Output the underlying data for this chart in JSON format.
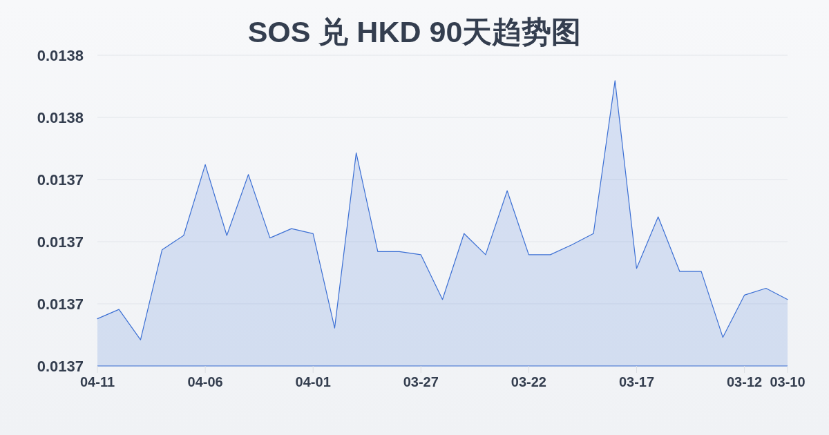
{
  "chart_data": {
    "type": "area",
    "title": "SOS 兑 HKD 90天趋势图",
    "categories": [
      "04-11",
      null,
      null,
      null,
      null,
      "04-06",
      null,
      null,
      null,
      null,
      "04-01",
      null,
      null,
      null,
      null,
      "03-27",
      null,
      null,
      null,
      null,
      "03-22",
      null,
      null,
      null,
      null,
      "03-17",
      null,
      null,
      null,
      null,
      "03-12",
      null,
      "03-10"
    ],
    "series": [
      {
        "color": "#3b6fd4",
        "values": [
          0.0137176,
          0.0137191,
          0.0137142,
          0.0137287,
          0.013731,
          0.0137424,
          0.013731,
          0.0137408,
          0.0137306,
          0.0137321,
          0.0137313,
          0.0137161,
          0.0137443,
          0.0137284,
          0.0137284,
          0.0137279,
          0.0137207,
          0.0137313,
          0.0137279,
          0.0137382,
          0.0137279,
          0.0137279,
          0.0137295,
          0.0137313,
          0.0137559,
          0.0137257,
          0.013734,
          0.0137252,
          0.0137252,
          0.0137146,
          0.0137214,
          0.0137225,
          0.0137207
        ]
      }
    ],
    "ylim": [
      0.01371,
      0.01376
    ],
    "yticks": [
      {
        "value": 0.01371,
        "label": "0.0137"
      },
      {
        "value": 0.01372,
        "label": "0.0137"
      },
      {
        "value": 0.01373,
        "label": "0.0137"
      },
      {
        "value": 0.01374,
        "label": "0.0137"
      },
      {
        "value": 0.01375,
        "label": "0.0138"
      },
      {
        "value": 0.01376,
        "label": "0.0138"
      }
    ],
    "grid": "y"
  }
}
